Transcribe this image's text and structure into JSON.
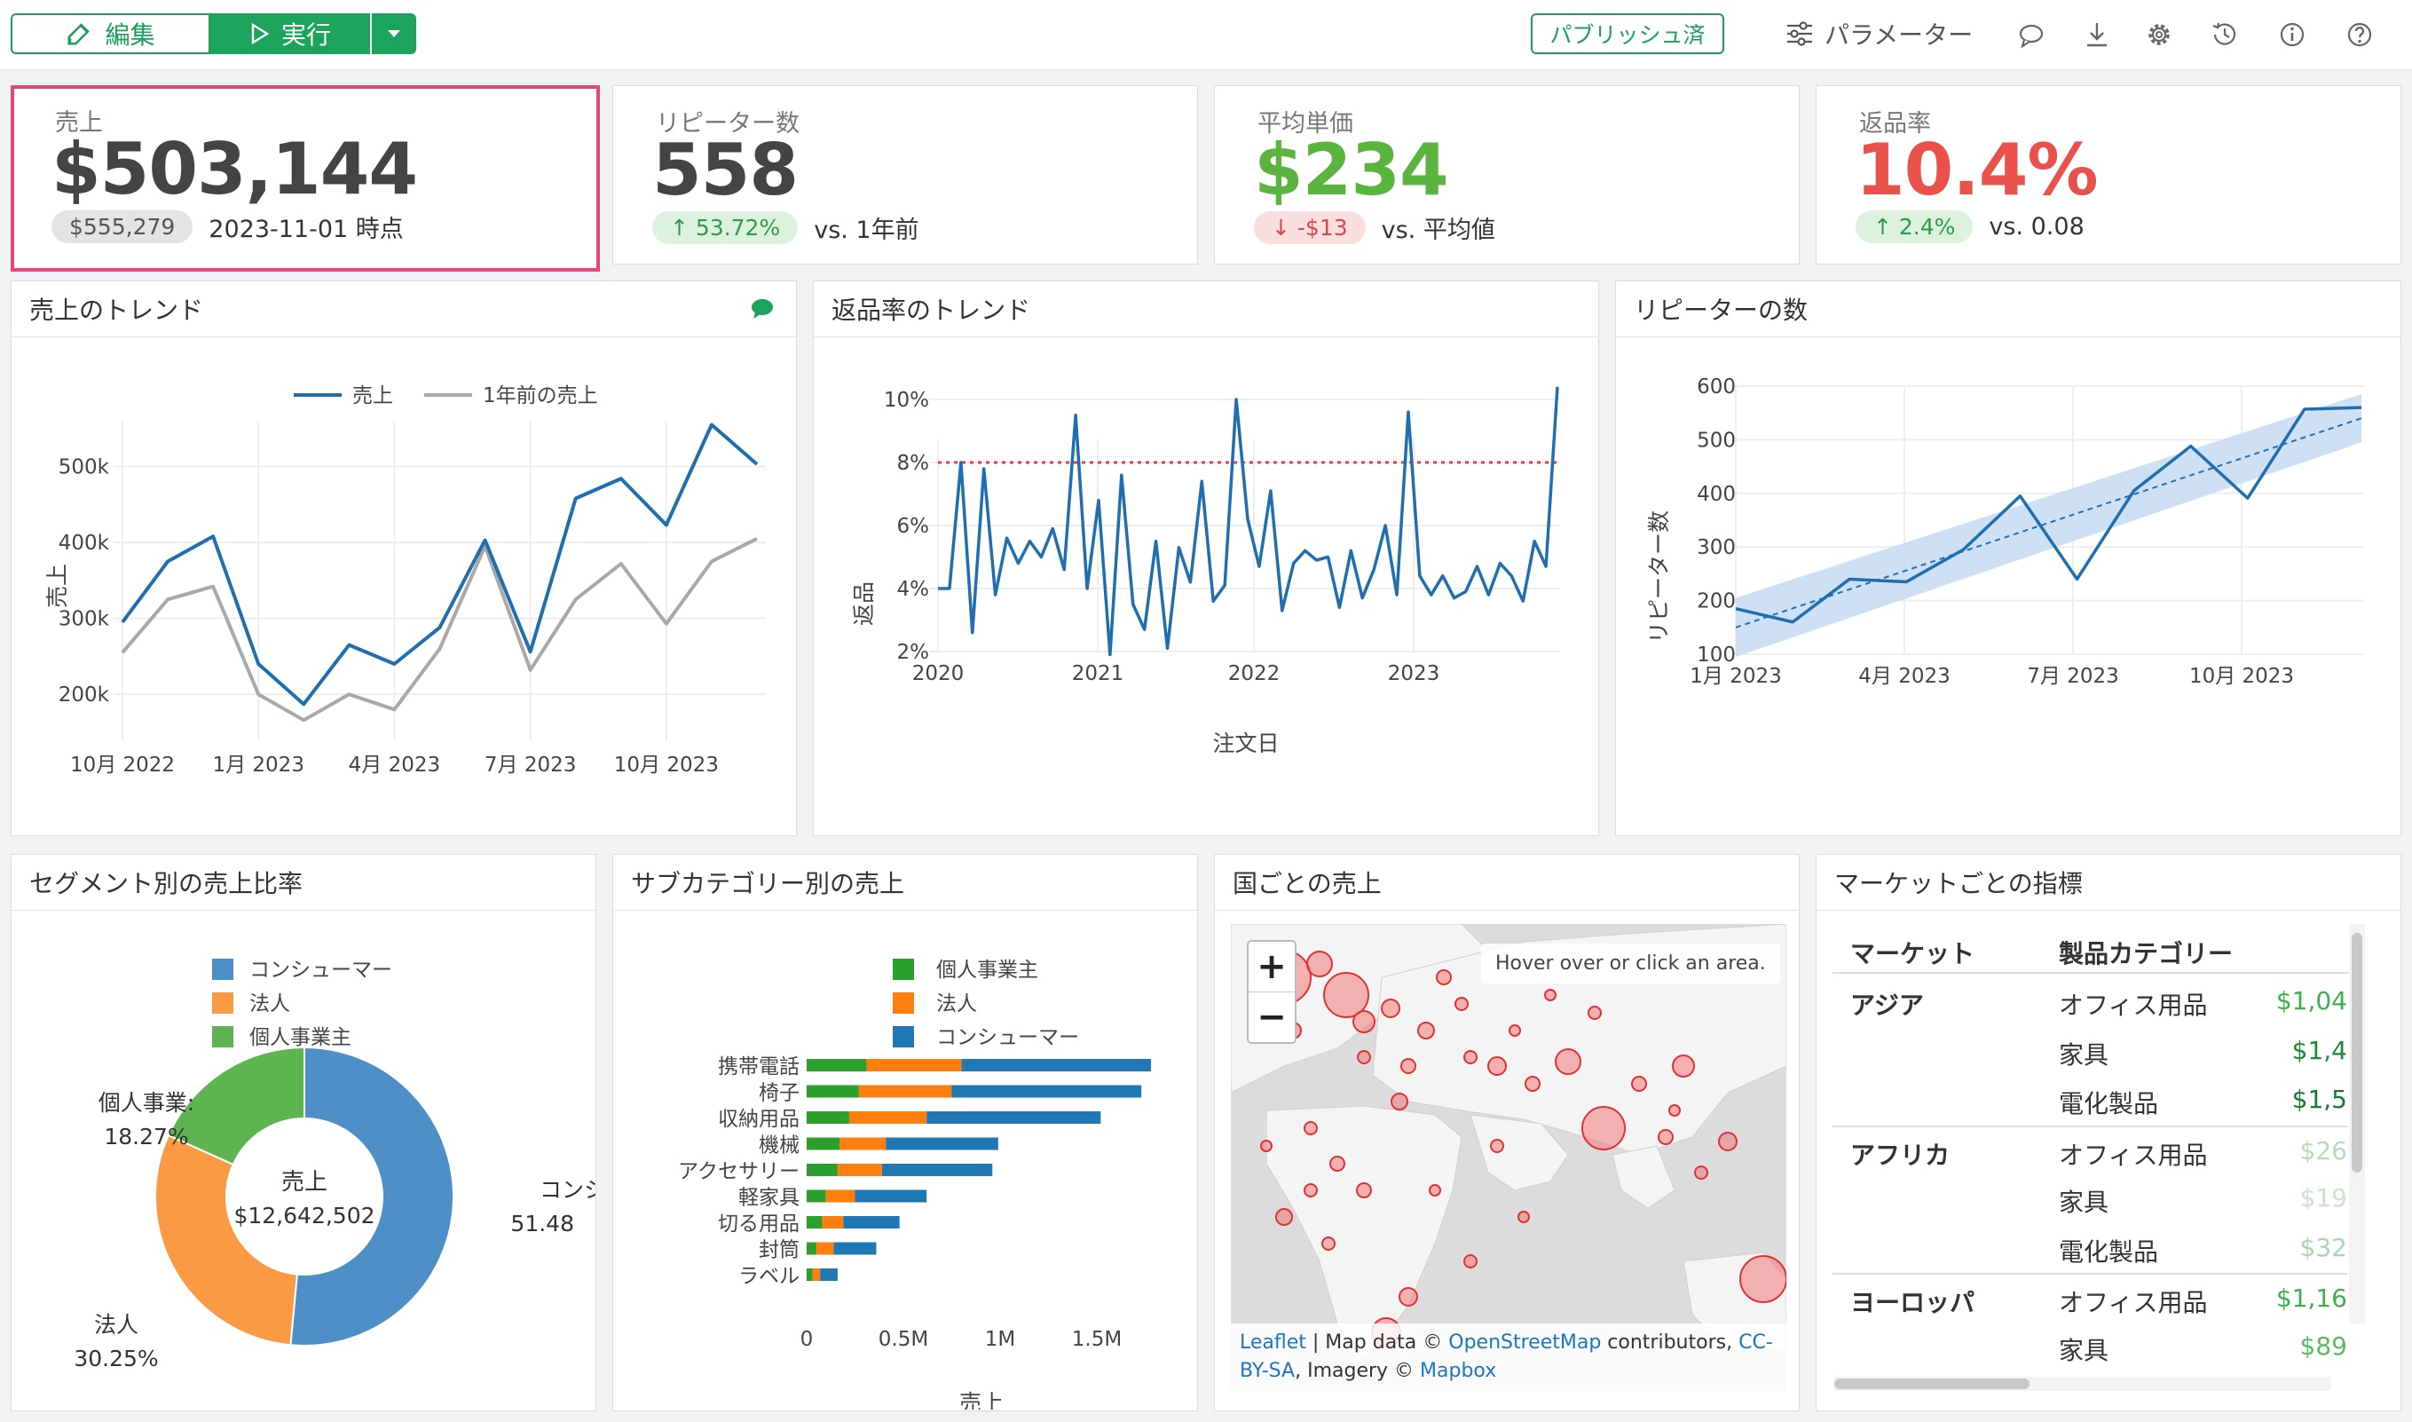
{
  "toolbar": {
    "edit_label": "編集",
    "run_label": "実行",
    "publish_label": "パブリッシュ済",
    "param_label": "パラメーター"
  },
  "kpis": [
    {
      "label": "売上",
      "value": "$503,144",
      "pill": "$555,279",
      "pill_kind": "grey",
      "note": "2023-11-01 時点",
      "value_color": "#444444"
    },
    {
      "label": "リピーター数",
      "value": "558",
      "pill": "↑ 53.72%",
      "pill_kind": "up",
      "note": "vs. 1年前",
      "value_color": "#444444"
    },
    {
      "label": "平均単価",
      "value": "$234",
      "pill": "↓ -$13",
      "pill_kind": "down",
      "note": "vs. 平均値",
      "value_color": "#5cb440"
    },
    {
      "label": "返品率",
      "value": "10.4%",
      "pill": "↑ 2.4%",
      "pill_kind": "up",
      "note": "vs. 0.08",
      "value_color": "#e8524a"
    }
  ],
  "colors": {
    "accent": "#1ca35c",
    "highlight_border": "#e8457d",
    "blue": "#1f6eb0",
    "grey_line": "#a8a8a8"
  },
  "chart_data": [
    {
      "type": "line",
      "title": "売上のトレンド",
      "ylabel": "売上",
      "xlabel": "",
      "ylim": [
        150000,
        600000
      ],
      "x_ticks": [
        "10月 2022",
        "1月 2023",
        "4月 2023",
        "7月 2023",
        "10月 2023"
      ],
      "y_ticks": [
        "200k",
        "300k",
        "400k",
        "500k"
      ],
      "legend": [
        "売上",
        "1年前の売上"
      ],
      "x": [
        "2022-10",
        "2022-11",
        "2022-12",
        "2023-01",
        "2023-02",
        "2023-03",
        "2023-04",
        "2023-05",
        "2023-06",
        "2023-07",
        "2023-08",
        "2023-09",
        "2023-10",
        "2023-11",
        "2023-12"
      ],
      "series": [
        {
          "name": "売上",
          "values": [
            295000,
            375000,
            408000,
            240000,
            187000,
            265000,
            240000,
            288000,
            403000,
            256000,
            458000,
            484000,
            423000,
            555000,
            503000
          ]
        },
        {
          "name": "1年前の売上",
          "values": [
            255000,
            325000,
            342000,
            200000,
            166000,
            200000,
            180000,
            260000,
            395000,
            232000,
            325000,
            372000,
            293000,
            375000,
            405000
          ]
        }
      ]
    },
    {
      "type": "line",
      "title": "返品率のトレンド",
      "ylabel": "返品",
      "xlabel": "注文日",
      "ylim": [
        2,
        10.5
      ],
      "x_ticks": [
        "2020",
        "2021",
        "2022",
        "2023"
      ],
      "y_ticks": [
        "2%",
        "4%",
        "6%",
        "8%",
        "10%"
      ],
      "reference": 8,
      "values": [
        4.0,
        4.0,
        8.0,
        2.6,
        7.8,
        3.8,
        5.6,
        4.8,
        5.5,
        5.0,
        5.9,
        4.6,
        9.5,
        4.0,
        6.8,
        1.9,
        7.6,
        3.5,
        2.7,
        5.5,
        2.1,
        5.3,
        4.2,
        7.4,
        3.6,
        4.1,
        10.0,
        6.2,
        4.7,
        7.1,
        3.3,
        4.8,
        5.2,
        4.9,
        5.0,
        3.4,
        5.2,
        3.7,
        4.6,
        6.0,
        3.8,
        9.6,
        4.4,
        3.8,
        4.4,
        3.7,
        3.9,
        4.7,
        3.8,
        4.8,
        4.4,
        3.6,
        5.5,
        4.7,
        10.4
      ]
    },
    {
      "type": "line",
      "title": "リピーターの数",
      "ylabel": "リピーター数",
      "xlabel": "",
      "ylim": [
        100,
        600
      ],
      "x_ticks": [
        "1月 2023",
        "4月 2023",
        "7月 2023",
        "10月 2023"
      ],
      "y_ticks": [
        "100",
        "200",
        "300",
        "400",
        "500",
        "600"
      ],
      "values": [
        185,
        160,
        240,
        235,
        295,
        395,
        240,
        405,
        488,
        391,
        557,
        560
      ],
      "trend": [
        150,
        540
      ]
    },
    {
      "type": "pie",
      "title": "セグメント別の売上比率",
      "center_label": "売上",
      "center_value": "$12,642,502",
      "legend": [
        "コンシューマー",
        "法人",
        "個人事業主"
      ],
      "slices": [
        {
          "name": "コンシューマー",
          "value": 51.48,
          "label": "コンシュー",
          "pct": "51.48",
          "color": "#4f8fc7"
        },
        {
          "name": "法人",
          "value": 30.25,
          "label": "法人",
          "pct": "30.25%",
          "color": "#fb9a45"
        },
        {
          "name": "個人事業主",
          "value": 18.27,
          "label": "個人事業:",
          "pct": "18.27%",
          "color": "#5db450"
        }
      ]
    },
    {
      "type": "bar",
      "title": "サブカテゴリー別の売上",
      "xlabel": "売上",
      "x_ticks": [
        "0",
        "0.5M",
        "1M",
        "1.5M"
      ],
      "xlim": [
        0,
        1800000
      ],
      "legend": [
        "個人事業主",
        "法人",
        "コンシューマー"
      ],
      "categories": [
        "携帯電話",
        "椅子",
        "収納用品",
        "機械",
        "アクセサリー",
        "軽家具",
        "切る用品",
        "封筒",
        "ラベル"
      ],
      "series": [
        {
          "name": "個人事業主",
          "color": "#2ca02c",
          "values": [
            310000,
            270000,
            220000,
            170000,
            160000,
            100000,
            80000,
            50000,
            30000
          ]
        },
        {
          "name": "法人",
          "color": "#ff7f0e",
          "values": [
            490000,
            480000,
            400000,
            240000,
            230000,
            150000,
            110000,
            90000,
            40000
          ]
        },
        {
          "name": "コンシューマー",
          "color": "#1f77b4",
          "values": [
            980000,
            980000,
            900000,
            580000,
            570000,
            370000,
            290000,
            220000,
            90000
          ]
        }
      ]
    }
  ],
  "titles": {
    "country": "国ごとの売上",
    "market": "マーケットごとの指標"
  },
  "map": {
    "hover_hint": "Hover over or click an area.",
    "attr_leaflet": "Leaflet",
    "attr_text1": " | Map data © ",
    "attr_osm": "OpenStreetMap",
    "attr_text2": " contributors, ",
    "attr_cc": "CC-BY-SA",
    "attr_text3": ", Imagery © ",
    "attr_mapbox": "Mapbox"
  },
  "market_table": {
    "headers": [
      "マーケット",
      "製品カテゴリー"
    ],
    "rows": [
      {
        "market": "アジア",
        "category": "オフィス用品",
        "value": "$1,04",
        "color": "#3fae4f"
      },
      {
        "market": "",
        "category": "家具",
        "value": "$1,4",
        "color": "#1a8a36"
      },
      {
        "market": "",
        "category": "電化製品",
        "value": "$1,5",
        "color": "#137a2e"
      },
      {
        "market": "アフリカ",
        "category": "オフィス用品",
        "value": "$26",
        "color": "#b4dfb6"
      },
      {
        "market": "",
        "category": "家具",
        "value": "$19",
        "color": "#c6e8c6"
      },
      {
        "market": "",
        "category": "電化製品",
        "value": "$32",
        "color": "#a7d9a9"
      },
      {
        "market": "ヨーロッパ",
        "category": "オフィス用品",
        "value": "$1,16",
        "color": "#3fae4f"
      },
      {
        "market": "",
        "category": "家具",
        "value": "$89",
        "color": "#5cbb62"
      }
    ]
  }
}
